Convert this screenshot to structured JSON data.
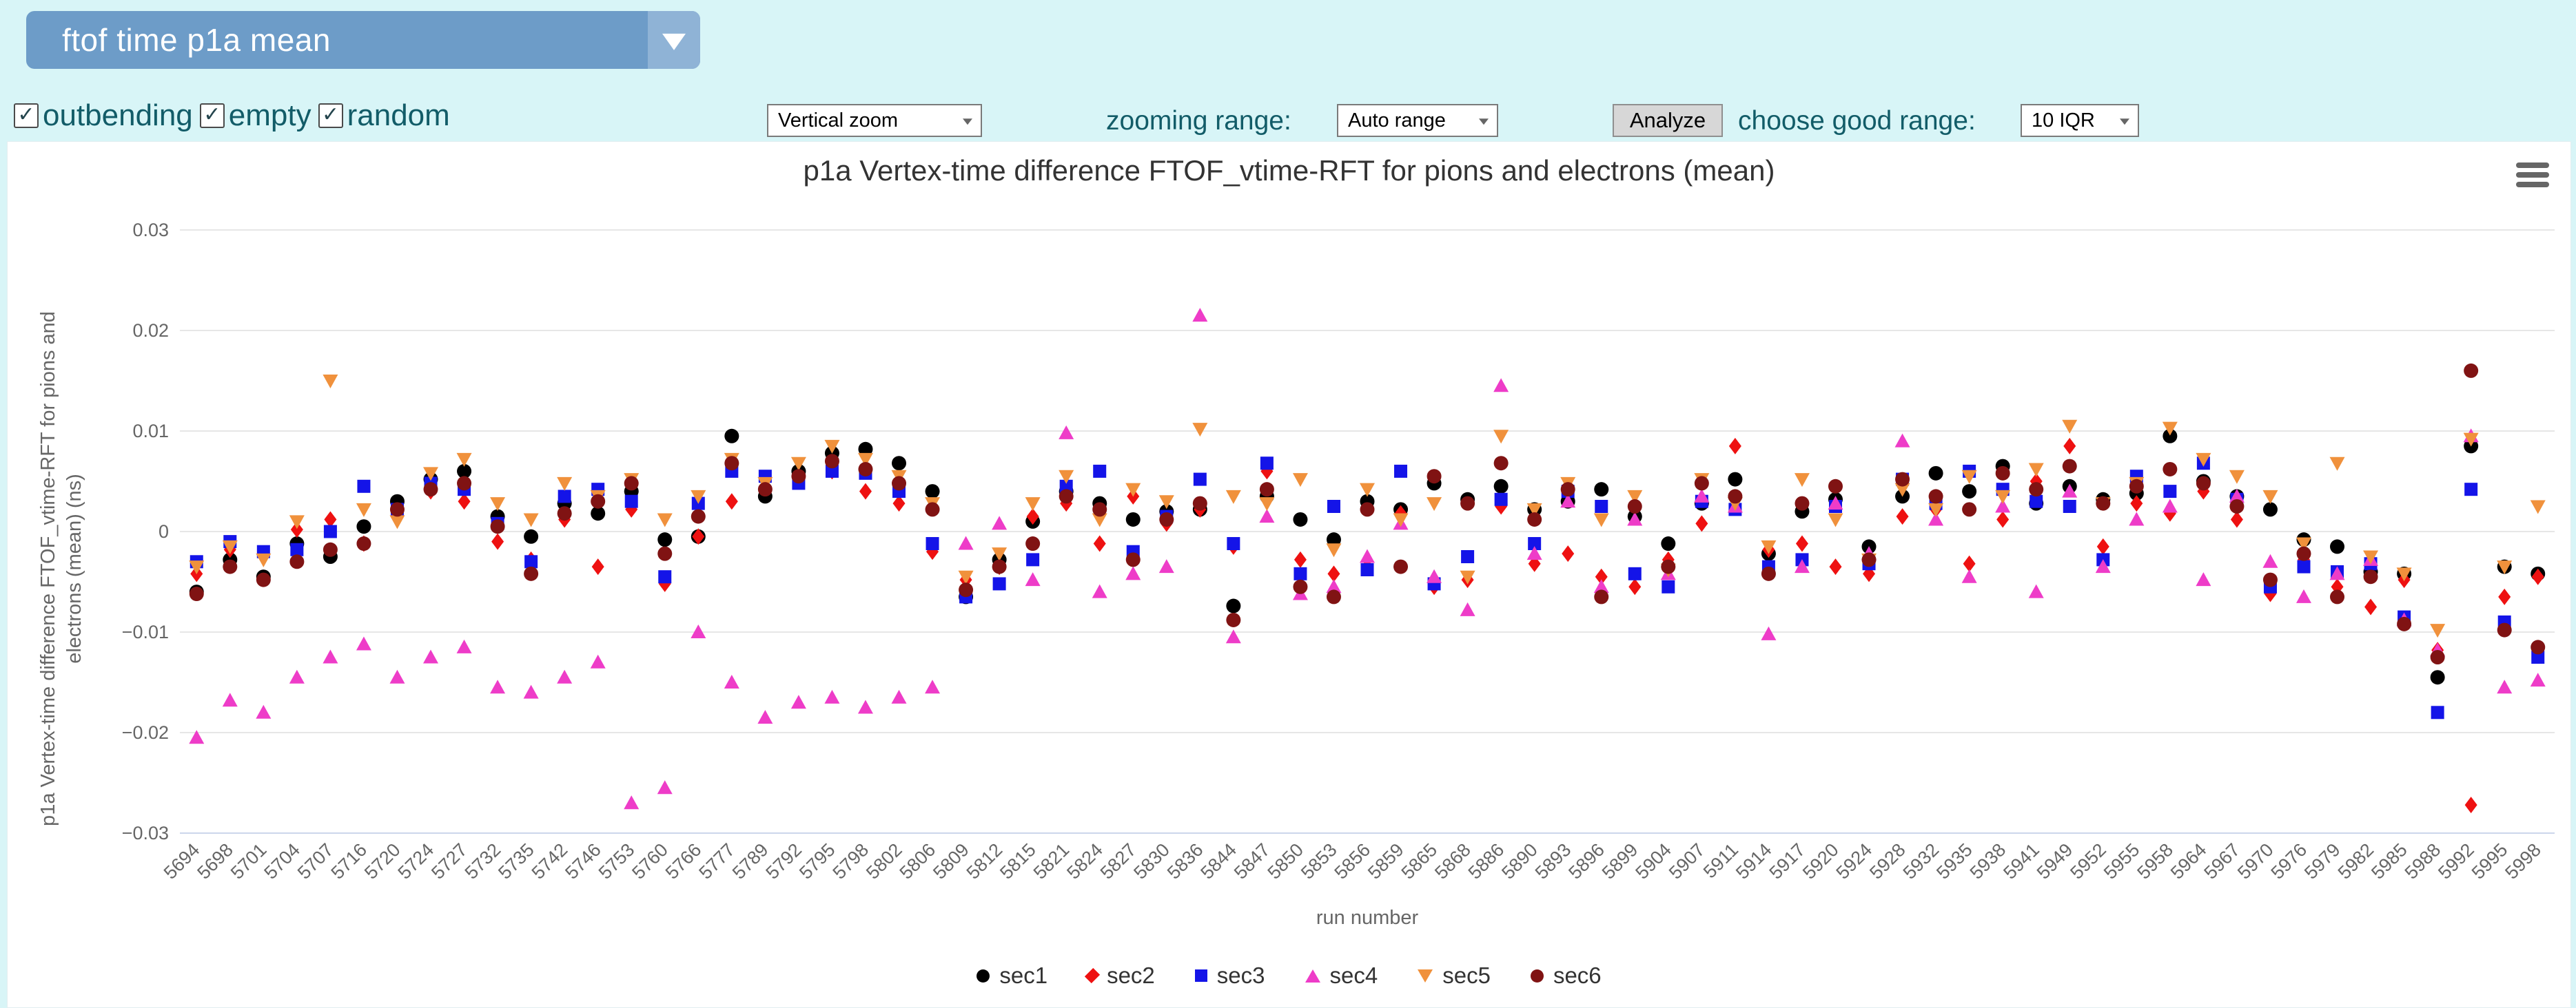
{
  "topbar": {
    "selector_label": "ftof time p1a mean"
  },
  "filters": {
    "items": [
      {
        "label": "outbending",
        "checked": true,
        "check_glyph": "✓"
      },
      {
        "label": "empty",
        "checked": true,
        "check_glyph": "✓"
      },
      {
        "label": "random",
        "checked": true,
        "check_glyph": "✓"
      }
    ]
  },
  "controls": {
    "zoom_mode_value": "Vertical zoom",
    "zooming_range_label": "zooming range:",
    "zooming_range_value": "Auto range",
    "analyze_label": "Analyze",
    "good_range_label": "choose good range:",
    "good_range_value": "10 IQR"
  },
  "colors": {
    "page_bg": "#d8f5f7",
    "panel_bg": "#ffffff",
    "dropdown_bg": "#6d9cc8",
    "dropdown_arrow_bg": "#8fb3d6",
    "teal_text": "#125c68",
    "button_bg": "#d7d7d7",
    "grid_line": "#e6e6e6",
    "axis_line": "#ccd6eb",
    "tick_text": "#666666",
    "title_text": "#333333"
  },
  "chart_data": {
    "type": "scatter",
    "title": "p1a Vertex-time difference FTOF_vtime-RFT for pions and electrons (mean)",
    "xlabel": "run number",
    "ylabel": "p1a Vertex-time difference FTOF_vtime-RFT for pions and\nelectrons (mean) (ns)",
    "ylim": [
      -0.03,
      0.03
    ],
    "ytick_step": 0.01,
    "ytick_labels": [
      "0.03",
      "0.02",
      "0.01",
      "0",
      "−0.01",
      "−0.02",
      "−0.03"
    ],
    "ytick_values": [
      0.03,
      0.02,
      0.01,
      0,
      -0.01,
      -0.02,
      -0.03
    ],
    "grid": true,
    "legend_position": "bottom",
    "categories": [
      5694,
      5698,
      5701,
      5704,
      5707,
      5716,
      5720,
      5724,
      5727,
      5732,
      5735,
      5742,
      5746,
      5753,
      5760,
      5766,
      5777,
      5789,
      5792,
      5795,
      5798,
      5802,
      5806,
      5809,
      5812,
      5815,
      5821,
      5824,
      5827,
      5830,
      5836,
      5844,
      5847,
      5850,
      5853,
      5856,
      5859,
      5865,
      5868,
      5886,
      5890,
      5893,
      5896,
      5899,
      5904,
      5907,
      5911,
      5914,
      5917,
      5920,
      5924,
      5928,
      5932,
      5935,
      5938,
      5941,
      5949,
      5952,
      5955,
      5958,
      5964,
      5967,
      5970,
      5976,
      5979,
      5982,
      5985,
      5988,
      5992,
      5995,
      5998
    ],
    "series": [
      {
        "name": "sec1",
        "color": "#000000",
        "marker": "circle",
        "values": [
          -0.006,
          -0.0028,
          -0.0045,
          -0.0012,
          -0.0025,
          0.0005,
          0.003,
          0.0052,
          0.006,
          0.0015,
          -0.0005,
          0.0028,
          0.0018,
          0.004,
          -0.0008,
          -0.0005,
          0.0095,
          0.0035,
          0.006,
          0.0078,
          0.0082,
          0.0068,
          0.004,
          -0.0065,
          -0.0028,
          0.001,
          0.004,
          0.0028,
          0.0012,
          0.002,
          0.0022,
          -0.0074,
          0.0035,
          0.0012,
          -0.0008,
          0.003,
          0.0022,
          0.0048,
          0.0032,
          0.0045,
          0.0022,
          0.003,
          0.0042,
          0.0015,
          -0.0012,
          0.0028,
          0.0052,
          -0.0022,
          0.002,
          0.0032,
          -0.0015,
          0.0035,
          0.0058,
          0.004,
          0.0065,
          0.0028,
          0.0045,
          0.0032,
          0.0038,
          0.0095,
          0.005,
          0.0035,
          0.0022,
          -0.0008,
          -0.0015,
          -0.004,
          -0.0042,
          -0.0145,
          0.0085,
          -0.0035,
          -0.0042
        ]
      },
      {
        "name": "sec2",
        "color": "#ee1111",
        "marker": "diamond",
        "values": [
          -0.0042,
          -0.0018,
          -0.0022,
          0.0002,
          0.0012,
          -0.0012,
          0.0018,
          0.004,
          0.003,
          -0.001,
          -0.0028,
          0.0012,
          -0.0035,
          0.0022,
          -0.0052,
          -0.0005,
          0.003,
          0.0045,
          0.0052,
          0.006,
          0.004,
          0.0028,
          -0.002,
          -0.0048,
          -0.0035,
          0.0015,
          0.0028,
          -0.0012,
          0.0035,
          0.0008,
          0.0022,
          -0.0015,
          0.006,
          -0.0028,
          -0.0042,
          -0.0035,
          0.0018,
          -0.0055,
          -0.0048,
          0.0025,
          -0.0032,
          -0.0022,
          -0.0045,
          -0.0055,
          -0.0028,
          0.0008,
          0.0085,
          -0.0018,
          -0.0012,
          -0.0035,
          -0.0042,
          0.0015,
          0.0022,
          -0.0032,
          0.0012,
          0.005,
          0.0085,
          -0.0015,
          0.0028,
          0.0018,
          0.004,
          0.0012,
          -0.0062,
          -0.0028,
          -0.0055,
          -0.0075,
          -0.0048,
          -0.0118,
          -0.0272,
          -0.0065,
          -0.0045
        ]
      },
      {
        "name": "sec3",
        "color": "#1414e8",
        "marker": "square",
        "values": [
          -0.003,
          -0.001,
          -0.002,
          -0.0018,
          0.0,
          0.0045,
          0.0022,
          0.0048,
          0.0042,
          0.0008,
          -0.003,
          0.0035,
          0.0042,
          0.003,
          -0.0045,
          0.0028,
          0.006,
          0.0055,
          0.0048,
          0.006,
          0.0058,
          0.004,
          -0.0012,
          -0.0065,
          -0.0052,
          -0.0028,
          0.0045,
          0.006,
          -0.002,
          0.0015,
          0.0052,
          -0.0012,
          0.0068,
          -0.0042,
          0.0025,
          -0.0038,
          0.006,
          -0.0052,
          -0.0025,
          0.0032,
          -0.0012,
          0.004,
          0.0025,
          -0.0042,
          -0.0055,
          0.003,
          0.0022,
          -0.0035,
          -0.0028,
          0.0025,
          -0.0032,
          0.0052,
          0.0028,
          0.006,
          0.0042,
          0.003,
          0.0025,
          -0.0028,
          0.0055,
          0.004,
          0.0068,
          0.0032,
          -0.0055,
          -0.0035,
          -0.004,
          -0.0032,
          -0.0085,
          -0.018,
          0.0042,
          -0.009,
          -0.0125
        ]
      },
      {
        "name": "sec4",
        "color": "#ee3cc8",
        "marker": "triangle",
        "values": [
          -0.0205,
          -0.0168,
          -0.018,
          -0.0145,
          -0.0125,
          -0.0112,
          -0.0145,
          -0.0125,
          -0.0115,
          -0.0155,
          -0.016,
          -0.0145,
          -0.013,
          -0.027,
          -0.0255,
          -0.01,
          -0.015,
          -0.0185,
          -0.017,
          -0.0165,
          -0.0175,
          -0.0165,
          -0.0155,
          -0.0012,
          0.0008,
          -0.0048,
          0.0098,
          -0.006,
          -0.0042,
          -0.0035,
          0.0215,
          -0.0105,
          0.0015,
          -0.0062,
          -0.0055,
          -0.0025,
          0.0008,
          -0.0045,
          -0.0078,
          0.0145,
          -0.0022,
          0.003,
          -0.0055,
          0.0012,
          -0.0042,
          0.0035,
          0.0025,
          -0.0102,
          -0.0035,
          0.0028,
          -0.0022,
          0.009,
          0.0012,
          -0.0045,
          0.0025,
          -0.006,
          0.004,
          -0.0035,
          0.0012,
          0.0025,
          -0.0048,
          0.0035,
          -0.003,
          -0.0065,
          -0.0042,
          -0.0028,
          -0.0088,
          -0.0118,
          0.0095,
          -0.0155,
          -0.0148
        ]
      },
      {
        "name": "sec5",
        "color": "#f0913c",
        "marker": "triangle-down",
        "values": [
          -0.0035,
          -0.0015,
          -0.0028,
          0.001,
          0.015,
          0.0022,
          0.001,
          0.0058,
          0.0072,
          0.0028,
          0.0012,
          0.0048,
          0.0035,
          0.0052,
          0.0012,
          0.0035,
          0.0072,
          0.0048,
          0.0068,
          0.0085,
          0.0072,
          0.0055,
          0.0028,
          -0.0045,
          -0.0022,
          0.0028,
          0.0055,
          0.0012,
          0.0042,
          0.003,
          0.0102,
          0.0035,
          0.0028,
          0.0052,
          -0.0018,
          0.0042,
          0.0012,
          0.0028,
          -0.0045,
          0.0095,
          0.0022,
          0.0048,
          0.0012,
          0.0035,
          -0.0038,
          0.0052,
          0.0028,
          -0.0015,
          0.0052,
          0.0012,
          -0.0028,
          0.0042,
          0.0022,
          0.0055,
          0.0035,
          0.0062,
          0.0105,
          0.0028,
          0.0048,
          0.0103,
          0.0072,
          0.0055,
          0.0035,
          -0.0012,
          0.0068,
          -0.0025,
          -0.0042,
          -0.0098,
          0.0092,
          -0.0035,
          0.0025
        ]
      },
      {
        "name": "sec6",
        "color": "#801313",
        "marker": "circle",
        "values": [
          -0.0062,
          -0.0035,
          -0.0048,
          -0.003,
          -0.0018,
          -0.0012,
          0.0022,
          0.0042,
          0.0048,
          0.0005,
          -0.0042,
          0.0018,
          0.003,
          0.0048,
          -0.0022,
          0.0015,
          0.0068,
          0.0042,
          0.0055,
          0.007,
          0.0062,
          0.0048,
          0.0022,
          -0.0058,
          -0.0035,
          -0.0012,
          0.0035,
          0.0022,
          -0.0028,
          0.0012,
          0.0028,
          -0.0088,
          0.0042,
          -0.0055,
          -0.0065,
          0.0022,
          -0.0035,
          0.0055,
          0.0028,
          0.0068,
          0.0012,
          0.0042,
          -0.0065,
          0.0025,
          -0.0035,
          0.0048,
          0.0035,
          -0.0042,
          0.0028,
          0.0045,
          -0.0028,
          0.0052,
          0.0035,
          0.0022,
          0.0058,
          0.0042,
          0.0065,
          0.0028,
          0.0045,
          0.0062,
          0.0048,
          0.0025,
          -0.0048,
          -0.0022,
          -0.0065,
          -0.0045,
          -0.0092,
          -0.0125,
          0.016,
          -0.0098,
          -0.0115
        ]
      }
    ]
  }
}
